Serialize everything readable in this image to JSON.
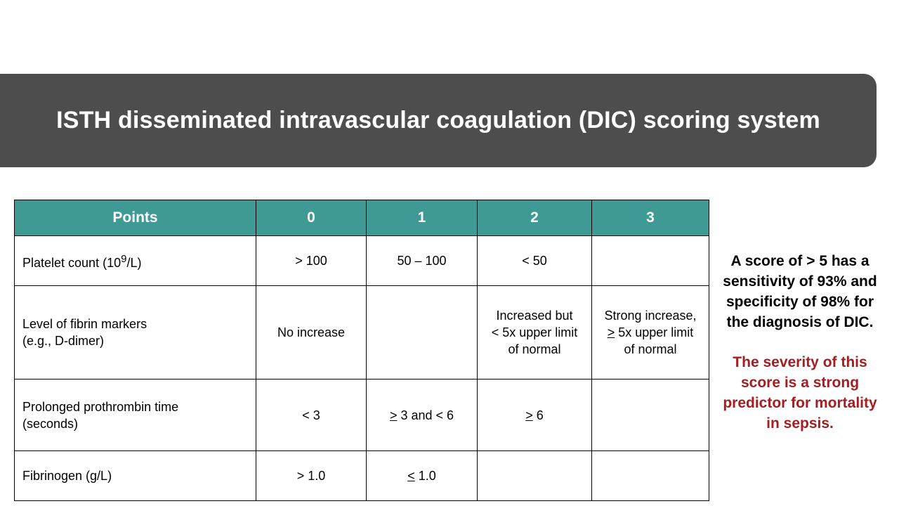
{
  "slide": {
    "title": "ISTH disseminated intravascular coagulation (DIC) scoring system",
    "colors": {
      "title_bar": "#4d4d4d",
      "table_header": "#3f9a96",
      "emphasis_text": "#a31d21"
    }
  },
  "table": {
    "headers": [
      "Points",
      "0",
      "1",
      "2",
      "3"
    ],
    "rows": [
      {
        "criterion": {
          "text": "Platelet count  (10",
          "sup": "9",
          "after": "/L)"
        },
        "cells": [
          {
            "prefix": "",
            "underline": "",
            "text": "> 100"
          },
          {
            "prefix": "",
            "underline": "",
            "text": "50 – 100"
          },
          {
            "prefix": "",
            "underline": "",
            "text": "< 50"
          },
          {
            "prefix": "",
            "underline": "",
            "text": ""
          }
        ]
      },
      {
        "criterion": {
          "text": "Level of fibrin markers\n(e.g., D-dimer)"
        },
        "cells": [
          {
            "prefix": "",
            "underline": "",
            "text": "No increase"
          },
          {
            "prefix": "",
            "underline": "",
            "text": ""
          },
          {
            "prefix": "",
            "underline": "",
            "text": "Increased but\n< 5x upper limit\nof normal"
          },
          {
            "prefix": "Strong increase,\n",
            "underline": ">",
            "text": " 5x upper limit\nof normal"
          }
        ]
      },
      {
        "criterion": {
          "text": "Prolonged prothrombin time\n(seconds)"
        },
        "cells": [
          {
            "prefix": "",
            "underline": "",
            "text": "< 3"
          },
          {
            "prefix": "",
            "underline": ">",
            "text": " 3 and < 6"
          },
          {
            "prefix": "",
            "underline": ">",
            "text": " 6"
          },
          {
            "prefix": "",
            "underline": "",
            "text": ""
          }
        ]
      },
      {
        "criterion": {
          "text": "Fibrinogen  (g/L)"
        },
        "cells": [
          {
            "prefix": "",
            "underline": "",
            "text": "> 1.0"
          },
          {
            "prefix": "",
            "underline": "<",
            "text": " 1.0"
          },
          {
            "prefix": "",
            "underline": "",
            "text": ""
          },
          {
            "prefix": "",
            "underline": "",
            "text": ""
          }
        ]
      }
    ]
  },
  "side_note": {
    "main": "A score of > 5 has a sensitivity of 93% and specificity of 98%  for the diagnosis of DIC.",
    "emphasis": "The severity of this score is a strong predictor for mortality in sepsis."
  }
}
